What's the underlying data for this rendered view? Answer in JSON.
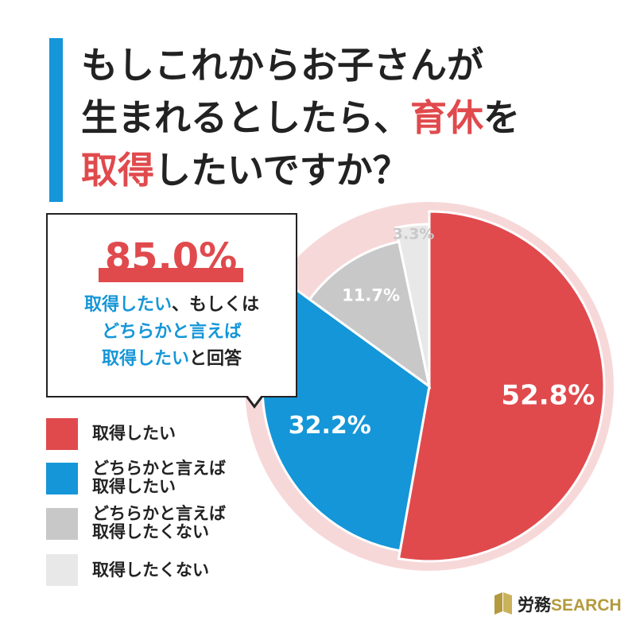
{
  "title": {
    "line1": "もしこれからお子さんが",
    "line2_a": "生まれるとしたら、",
    "line2_b": "育休",
    "line2_c": "を",
    "line3_a": "取得",
    "line3_b": "したいですか？"
  },
  "callout": {
    "headline": "85.0%",
    "line1_a": "取得したい",
    "line1_b": "、もしくは",
    "line2": "どちらかと言えば",
    "line3_a": "取得したい",
    "line3_b": "と回答"
  },
  "logo": {
    "kanji": "労務",
    "latin": "SEARCH"
  },
  "colors": {
    "red": "#e04a4d",
    "blue": "#1596d8",
    "gray": "#c8c8c8",
    "light_gray": "#e8e8e8",
    "halo": "#f7d8d9"
  },
  "chart_data": {
    "type": "pie",
    "start": "12 o'clock, clockwise",
    "categories": [
      "取得したい",
      "どちらかと言えば取得したい",
      "どちらかと言えば取得したくない",
      "取得したくない"
    ],
    "values": [
      52.8,
      32.2,
      11.7,
      3.3
    ],
    "labels": [
      "52.8%",
      "32.2%",
      "11.7%",
      "3.3%"
    ],
    "colors": [
      "#e04a4d",
      "#1596d8",
      "#c8c8c8",
      "#e8e8e8"
    ],
    "label_colors": [
      "#ffffff",
      "#ffffff",
      "#ffffff",
      "#c8c8c8"
    ],
    "legend": {
      "position": "bottom-left",
      "items": [
        {
          "lines": [
            "取得したい"
          ],
          "color": "#e04a4d"
        },
        {
          "lines": [
            "どちらかと言えば",
            "取得したい"
          ],
          "color": "#1596d8"
        },
        {
          "lines": [
            "どちらかと言えば",
            "取得したくない"
          ],
          "color": "#c8c8c8"
        },
        {
          "lines": [
            "取得したくない"
          ],
          "color": "#e8e8e8"
        }
      ]
    }
  }
}
